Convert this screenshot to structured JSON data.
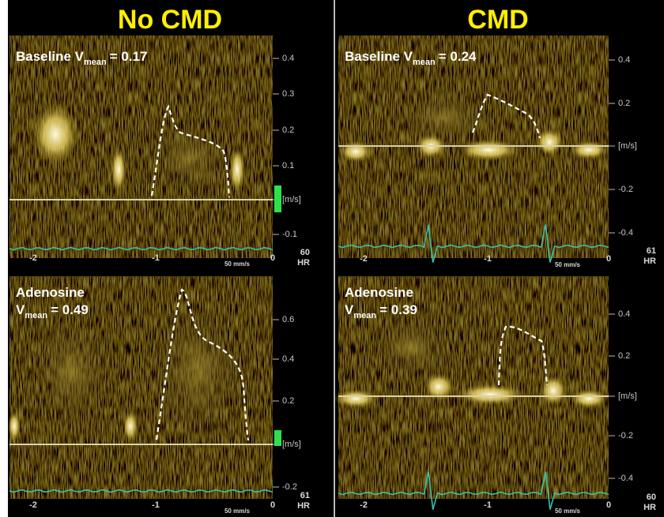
{
  "columns": [
    {
      "title": "No CMD",
      "panels": [
        {
          "prefix": "Baseline V",
          "sub": "mean",
          "value": "= 0.17",
          "scale": [
            "0.4",
            "0.3",
            "0.2",
            "0.1",
            "[m/s]",
            "-0.1"
          ],
          "time": [
            "-2",
            "-1",
            "0"
          ],
          "hr": "60",
          "hr_label": "HR",
          "speed": "50 mm/s"
        },
        {
          "heading": "Adenosine",
          "prefix": "V",
          "sub": "mean",
          "value": "= 0.49",
          "scale": [
            "0.6",
            "0.4",
            "0.2",
            "[m/s]",
            "-0.2"
          ],
          "time": [
            "-2",
            "-1",
            "0"
          ],
          "hr": "61",
          "hr_label": "HR",
          "speed": "50 mm/s"
        }
      ]
    },
    {
      "title": "CMD",
      "panels": [
        {
          "prefix": "Baseline V",
          "sub": "mean",
          "value": "= 0.24",
          "scale": [
            "0.4",
            "0.2",
            "[m/s]",
            "-0.2",
            "-0.4"
          ],
          "time": [
            "-2",
            "-1",
            "0"
          ],
          "hr": "61",
          "hr_label": "HR",
          "speed": "50 mm/s"
        },
        {
          "heading": "Adenosine",
          "prefix": "V",
          "sub": "mean",
          "value": "= 0.39",
          "scale": [
            "0.4",
            "0.2",
            "[m/s]",
            "-0.2",
            "-0.4"
          ],
          "time": [
            "-2",
            "-1",
            "0"
          ],
          "hr": "60",
          "hr_label": "HR",
          "speed": "50 mm/s"
        }
      ]
    }
  ]
}
